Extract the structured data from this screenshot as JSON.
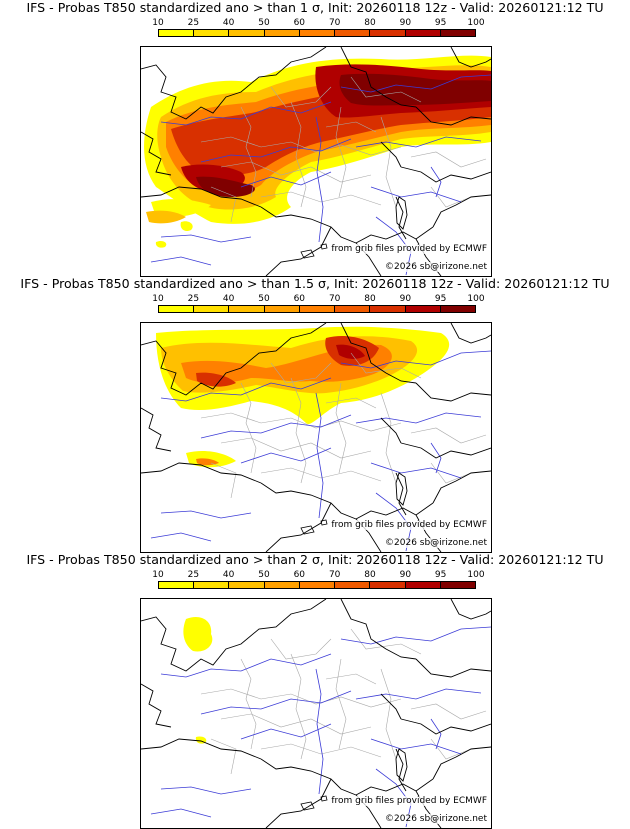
{
  "colorbar": {
    "ticks": [
      "10",
      "25",
      "40",
      "50",
      "60",
      "70",
      "80",
      "90",
      "95",
      "100"
    ],
    "colors": [
      "#ffff00",
      "#ffe000",
      "#ffc000",
      "#ffa000",
      "#ff8000",
      "#f05a00",
      "#d83000",
      "#b00000",
      "#800000"
    ]
  },
  "panels": [
    {
      "title": "IFS - Probas T850  standardized ano > than 1 σ, Init: 20260118 12z - Valid: 20260121:12 TU",
      "source": "from grib files provided by ECMWF",
      "copyright": "©2026 sb@irizone.net"
    },
    {
      "title": "IFS - Probas T850  standardized ano > than 1.5 σ, Init: 20260118 12z - Valid: 20260121:12 TU",
      "source": "from grib files provided by ECMWF",
      "copyright": "©2026 sb@irizone.net"
    },
    {
      "title": "IFS - Probas T850  standardized ano > than 2 σ, Init: 20260118 12z - Valid: 20260121:12 TU",
      "source": "from grib files provided by ECMWF",
      "copyright": "©2026 sb@irizone.net"
    }
  ]
}
